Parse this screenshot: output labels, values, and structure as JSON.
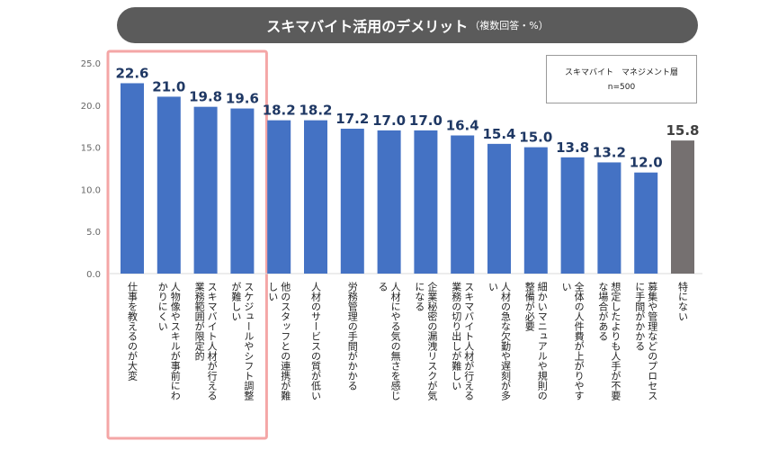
{
  "header": {
    "title": "スキマバイト活用のデメリット",
    "subtitle": "（複数回答・%）"
  },
  "legend": {
    "line1": "スキマバイト　マネジメント層",
    "line2": "n=500"
  },
  "colors": {
    "bar": "#4472c4",
    "bar_none": "#757070",
    "value_text": "#1f3864",
    "value_text_none": "#404040",
    "highlight": "#f4a6a6",
    "title_bg": "#5b5b5b"
  },
  "chart_data": {
    "type": "bar",
    "title": "スキマバイト活用のデメリット",
    "ylim": [
      0,
      25
    ],
    "yticks": [
      "0.0",
      "5.0",
      "10.0",
      "15.0",
      "20.0",
      "25.0"
    ],
    "grid": false,
    "legend_position": "top-right",
    "highlighted_categories": [
      0,
      1,
      2,
      3
    ],
    "categories": [
      [
        "仕事を教えるのが大変"
      ],
      [
        "人物像やスキルが事前にわ",
        "かりにくい"
      ],
      [
        "スキマバイト人材が行える",
        "業務範囲が限定的"
      ],
      [
        "スケジュールやシフト調整",
        "が難しい"
      ],
      [
        "他のスタッフとの連携が難",
        "しい"
      ],
      [
        "人材のサービスの質が低い"
      ],
      [
        "労務管理の手間がかかる"
      ],
      [
        "人材にやる気の無さを感じ",
        "る"
      ],
      [
        "企業秘密の漏洩リスクが気",
        "になる"
      ],
      [
        "スキマバイト人材が行える",
        "業務の切り出しが難しい"
      ],
      [
        "人材の急な欠勤や遅刻が多",
        "い"
      ],
      [
        "細かいマニュアルや規則の",
        "整備が必要"
      ],
      [
        "全体の人件費が上がりやす",
        "い"
      ],
      [
        "想定したよりも人手が不要",
        "な場合がある"
      ],
      [
        "募集や管理などのプロセス",
        "に手間がかかる"
      ],
      [
        "特にない"
      ]
    ],
    "values": [
      22.6,
      21.0,
      19.8,
      19.6,
      18.2,
      18.2,
      17.2,
      17.0,
      17.0,
      16.4,
      15.4,
      15.0,
      13.8,
      13.2,
      12.0,
      15.8
    ],
    "value_labels": [
      "22.6",
      "21.0",
      "19.8",
      "19.6",
      "18.2",
      "18.2",
      "17.2",
      "17.0",
      "17.0",
      "16.4",
      "15.4",
      "15.0",
      "13.8",
      "13.2",
      "12.0",
      "15.8"
    ]
  }
}
